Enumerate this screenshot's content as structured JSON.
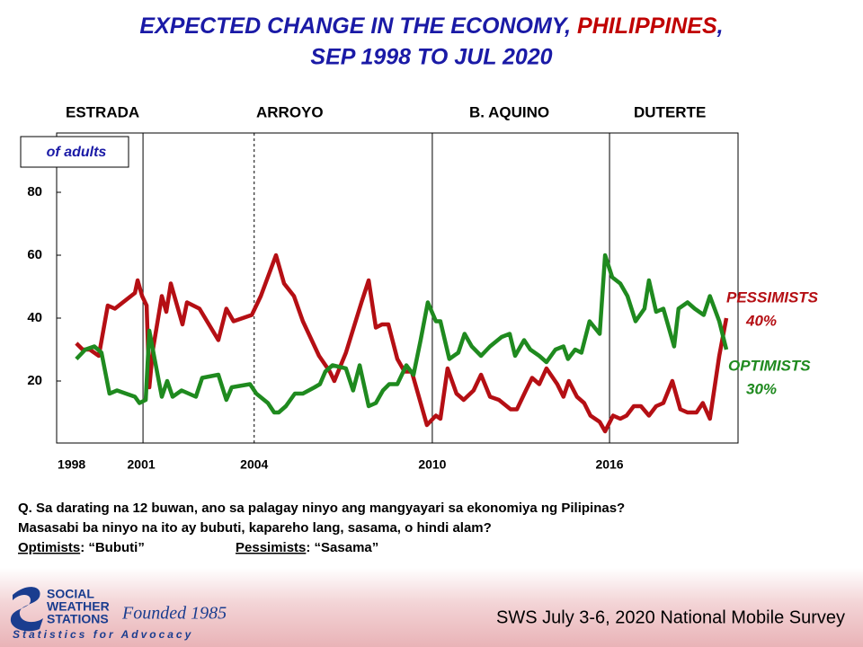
{
  "chart_data": {
    "type": "line",
    "title_parts": [
      "EXPECTED CHANGE IN THE ECONOMY, ",
      "PHILIPPINES",
      ","
    ],
    "title_line2": "SEP 1998 TO JUL 2020",
    "unit_label": "of adults",
    "periods": [
      "ESTRADA",
      "ARROYO",
      "B. AQUINO",
      "DUTERTE"
    ],
    "period_lines": [
      {
        "x": 2000.89,
        "dashed": false
      },
      {
        "x": 2004.61,
        "dashed": true
      },
      {
        "x": 2010.57,
        "dashed": false
      },
      {
        "x": 2016.5,
        "dashed": false
      }
    ],
    "xlim": [
      1998,
      2020.8
    ],
    "ylim": [
      0,
      100
    ],
    "yticks": [
      20,
      40,
      60,
      80
    ],
    "xticks": [
      {
        "value": 1998.5,
        "label": "1998"
      },
      {
        "value": 2000.83,
        "label": "2001"
      },
      {
        "value": 2004.61,
        "label": "2004"
      },
      {
        "value": 2010.57,
        "label": "2010"
      },
      {
        "value": 2016.5,
        "label": "2016"
      }
    ],
    "grid": false,
    "series": [
      {
        "name": "PESSIMISTS",
        "color": "#b50f14",
        "end_value_label": "40%",
        "x": [
          1998.66,
          1998.87,
          1999.11,
          1999.41,
          1999.71,
          1999.95,
          2000.62,
          2000.71,
          2000.86,
          2001.01,
          2001.1,
          2001.22,
          2001.52,
          2001.67,
          2001.82,
          2002.21,
          2002.36,
          2002.78,
          2003.41,
          2003.68,
          2003.92,
          2004.53,
          2004.83,
          2005.34,
          2005.61,
          2005.94,
          2006.24,
          2006.78,
          2007.14,
          2007.29,
          2007.68,
          2008.2,
          2008.44,
          2008.68,
          2008.89,
          2009.1,
          2009.4,
          2009.64,
          2009.88,
          2010.39,
          2010.69,
          2010.84,
          2011.08,
          2011.38,
          2011.62,
          2011.95,
          2012.2,
          2012.5,
          2012.8,
          2013.19,
          2013.4,
          2013.7,
          2013.91,
          2014.15,
          2014.39,
          2014.75,
          2014.96,
          2015.14,
          2015.41,
          2015.65,
          2015.86,
          2016.17,
          2016.35,
          2016.62,
          2016.86,
          2017.07,
          2017.31,
          2017.55,
          2017.82,
          2018.06,
          2018.3,
          2018.6,
          2018.87,
          2019.11,
          2019.41,
          2019.62,
          2019.86,
          2020.17,
          2020.41
        ],
        "values": [
          32,
          30,
          30,
          28,
          44,
          43,
          48,
          52,
          47,
          44,
          18,
          30,
          47,
          42,
          51,
          38,
          45,
          43,
          33,
          43,
          39,
          41,
          47,
          60,
          51,
          47,
          39,
          28,
          23,
          20,
          29,
          45,
          52,
          37,
          38,
          38,
          27,
          23,
          23,
          6,
          9,
          8,
          24,
          16,
          14,
          17,
          22,
          15,
          14,
          11,
          11,
          17,
          21,
          19,
          24,
          19,
          15,
          20,
          15,
          13,
          9,
          7,
          4,
          9,
          8,
          9,
          12,
          12,
          9,
          12,
          13,
          20,
          11,
          10,
          10,
          13,
          8,
          28,
          40
        ]
      },
      {
        "name": "OPTIMISTS",
        "color": "#1f8a1f",
        "end_value_label": "30%",
        "x": [
          1998.66,
          1998.96,
          1999.26,
          1999.5,
          1999.77,
          2000.02,
          2000.32,
          2000.62,
          2000.77,
          2000.98,
          2001.1,
          2001.28,
          2001.52,
          2001.7,
          2001.88,
          2002.18,
          2002.66,
          2002.87,
          2003.41,
          2003.68,
          2003.86,
          2004.47,
          2004.68,
          2005.07,
          2005.28,
          2005.43,
          2005.67,
          2005.97,
          2006.24,
          2006.63,
          2006.81,
          2006.99,
          2007.23,
          2007.68,
          2007.92,
          2008.14,
          2008.44,
          2008.68,
          2008.92,
          2009.13,
          2009.4,
          2009.7,
          2009.94,
          2010.18,
          2010.42,
          2010.69,
          2010.84,
          2011.14,
          2011.44,
          2011.65,
          2011.89,
          2012.2,
          2012.5,
          2012.89,
          2013.16,
          2013.34,
          2013.64,
          2013.85,
          2014.15,
          2014.39,
          2014.69,
          2014.96,
          2015.11,
          2015.35,
          2015.56,
          2015.83,
          2016.17,
          2016.35,
          2016.59,
          2016.86,
          2017.1,
          2017.37,
          2017.67,
          2017.82,
          2018.06,
          2018.3,
          2018.66,
          2018.81,
          2019.11,
          2019.35,
          2019.65,
          2019.86,
          2020.17,
          2020.41
        ],
        "values": [
          27,
          30,
          31,
          29,
          16,
          17,
          16,
          15,
          13,
          14,
          36,
          27,
          15,
          20,
          15,
          17,
          15,
          21,
          22,
          14,
          18,
          19,
          16,
          13,
          10,
          10,
          12,
          16,
          16,
          18,
          19,
          23,
          25,
          24,
          17,
          25,
          12,
          13,
          17,
          19,
          19,
          25,
          22,
          33,
          45,
          39,
          39,
          27,
          29,
          35,
          31,
          28,
          31,
          34,
          35,
          28,
          33,
          30,
          28,
          26,
          30,
          31,
          27,
          30,
          29,
          39,
          35,
          60,
          53,
          51,
          47,
          39,
          43,
          52,
          42,
          43,
          31,
          43,
          45,
          43,
          41,
          47,
          39,
          30
        ]
      }
    ],
    "question_lines": [
      "Q. Sa darating na 12 buwan, ano sa palagay ninyo ang mangyayari sa ekonomiya ng Pilipinas?",
      "Masasabi ba ninyo na ito ay bubuti, kapareho lang, sasama, o hindi alam?"
    ],
    "definitions": [
      {
        "term": "Optimists",
        "text": ": “Bubuti”"
      },
      {
        "term": "Pessimists",
        "text": ": “Sasama”"
      }
    ],
    "logo": {
      "line1": "SOCIAL",
      "line2": "WEATHER",
      "line3": "STATIONS",
      "founded": "Founded 1985",
      "tagline": "Statistics for Advocacy"
    },
    "footer": "SWS July 3-6, 2020 National Mobile Survey"
  }
}
